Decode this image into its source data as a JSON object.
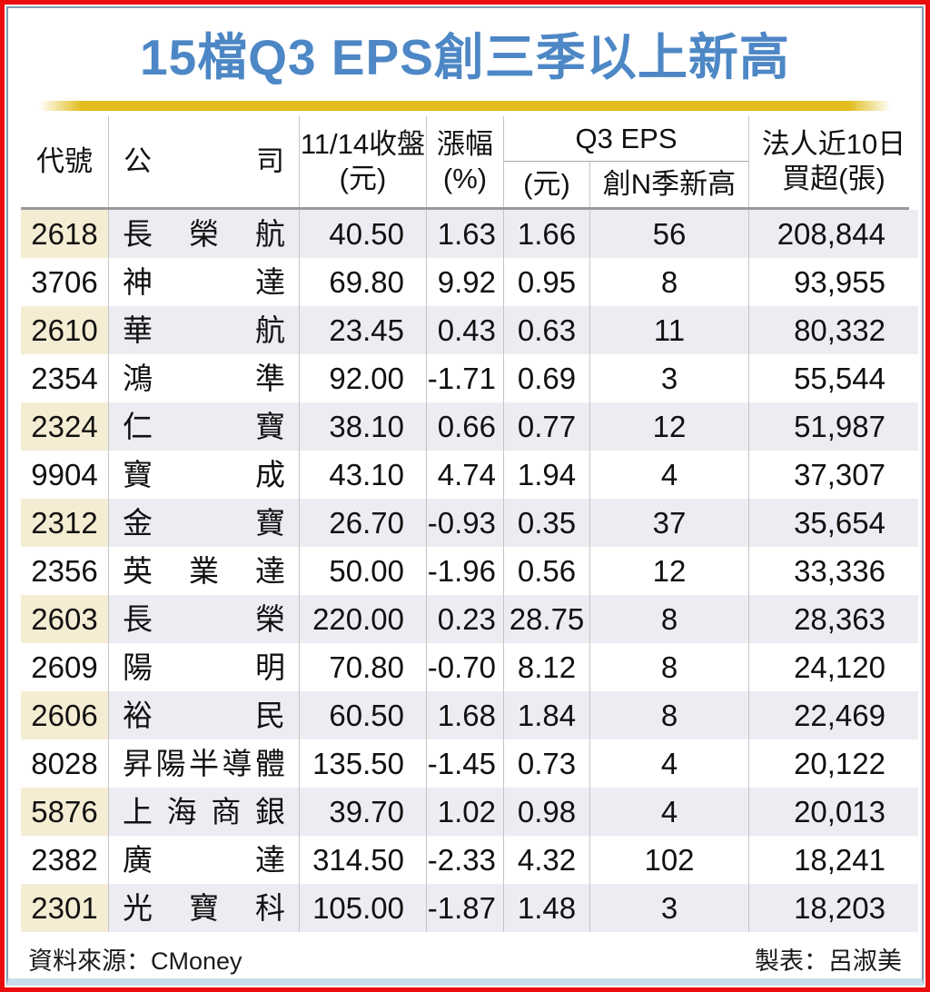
{
  "title": "15檔Q3 EPS創三季以上新高",
  "colors": {
    "frame_red": "#e90d0d",
    "frame_blue": "#7e9db4",
    "title_blue": "#4d87c5",
    "bar_gold": "#e2bc1d",
    "row_code_beige": "#f5edd3",
    "row_shade_gray": "#ecedf2"
  },
  "table": {
    "headers": {
      "code": "代號",
      "company": "公司",
      "close_line1": "11/14收盤",
      "close_line2": "(元)",
      "change_line1": "漲幅",
      "change_line2": "(%)",
      "q3eps_group": "Q3 EPS",
      "eps_unit": "(元)",
      "n_quarter_high": "創N季新高",
      "buy_line1": "法人近10日",
      "buy_line2": "買超(張)"
    }
  },
  "chart_data": {
    "type": "table",
    "title": "15檔Q3 EPS創三季以上新高",
    "columns": [
      "代號",
      "公司",
      "11/14收盤(元)",
      "漲幅(%)",
      "Q3 EPS(元)",
      "Q3 EPS創N季新高",
      "法人近10日買超(張)"
    ],
    "rows": [
      {
        "code": "2618",
        "company": "長榮航",
        "close": "40.50",
        "change": "1.63",
        "eps": "1.66",
        "n_high": "56",
        "net_buy": "208,844"
      },
      {
        "code": "3706",
        "company": "神達",
        "close": "69.80",
        "change": "9.92",
        "eps": "0.95",
        "n_high": "8",
        "net_buy": "93,955"
      },
      {
        "code": "2610",
        "company": "華航",
        "close": "23.45",
        "change": "0.43",
        "eps": "0.63",
        "n_high": "11",
        "net_buy": "80,332"
      },
      {
        "code": "2354",
        "company": "鴻準",
        "close": "92.00",
        "change": "-1.71",
        "eps": "0.69",
        "n_high": "3",
        "net_buy": "55,544"
      },
      {
        "code": "2324",
        "company": "仁寶",
        "close": "38.10",
        "change": "0.66",
        "eps": "0.77",
        "n_high": "12",
        "net_buy": "51,987"
      },
      {
        "code": "9904",
        "company": "寶成",
        "close": "43.10",
        "change": "4.74",
        "eps": "1.94",
        "n_high": "4",
        "net_buy": "37,307"
      },
      {
        "code": "2312",
        "company": "金寶",
        "close": "26.70",
        "change": "-0.93",
        "eps": "0.35",
        "n_high": "37",
        "net_buy": "35,654"
      },
      {
        "code": "2356",
        "company": "英業達",
        "close": "50.00",
        "change": "-1.96",
        "eps": "0.56",
        "n_high": "12",
        "net_buy": "33,336"
      },
      {
        "code": "2603",
        "company": "長榮",
        "close": "220.00",
        "change": "0.23",
        "eps": "28.75",
        "n_high": "8",
        "net_buy": "28,363"
      },
      {
        "code": "2609",
        "company": "陽明",
        "close": "70.80",
        "change": "-0.70",
        "eps": "8.12",
        "n_high": "8",
        "net_buy": "24,120"
      },
      {
        "code": "2606",
        "company": "裕民",
        "close": "60.50",
        "change": "1.68",
        "eps": "1.84",
        "n_high": "8",
        "net_buy": "22,469"
      },
      {
        "code": "8028",
        "company": "昇陽半導體",
        "close": "135.50",
        "change": "-1.45",
        "eps": "0.73",
        "n_high": "4",
        "net_buy": "20,122"
      },
      {
        "code": "5876",
        "company": "上海商銀",
        "close": "39.70",
        "change": "1.02",
        "eps": "0.98",
        "n_high": "4",
        "net_buy": "20,013"
      },
      {
        "code": "2382",
        "company": "廣達",
        "close": "314.50",
        "change": "-2.33",
        "eps": "4.32",
        "n_high": "102",
        "net_buy": "18,241"
      },
      {
        "code": "2301",
        "company": "光寶科",
        "close": "105.00",
        "change": "-1.87",
        "eps": "1.48",
        "n_high": "3",
        "net_buy": "18,203"
      }
    ]
  },
  "footer": {
    "source": "資料來源：CMoney",
    "credit": "製表：呂淑美"
  }
}
